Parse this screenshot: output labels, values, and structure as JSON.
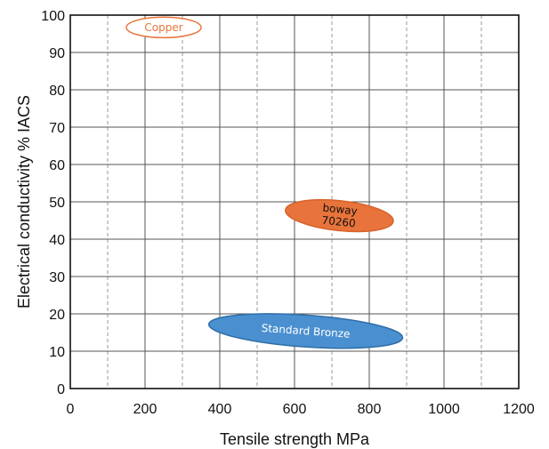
{
  "chart_data": {
    "type": "scatter",
    "title": "",
    "xlabel": "Tensile strength MPa",
    "ylabel": "Electrical conductivity % IACS",
    "xlim": [
      0,
      1200
    ],
    "ylim": [
      0,
      100
    ],
    "xticks": [
      "0",
      "200",
      "400",
      "600",
      "800",
      "1000",
      "1200"
    ],
    "yticks": [
      "0",
      "10",
      "20",
      "30",
      "40",
      "50",
      "60",
      "70",
      "80",
      "90",
      "100"
    ],
    "grid": {
      "major": true,
      "minor_dashed": true
    },
    "regions": [
      {
        "label_lines": [
          "Copper"
        ],
        "x_center": 250,
        "y_center": 96.7,
        "x_range": [
          150,
          350
        ],
        "y_range": [
          94,
          99.5
        ],
        "tilt_deg": 0,
        "fill": "#ffffff",
        "stroke": "#e8743b",
        "text_color": "#e8743b"
      },
      {
        "label_lines": [
          "boway",
          "70260"
        ],
        "x_center": 720,
        "y_center": 46.3,
        "x_range": [
          575,
          865
        ],
        "y_range": [
          42,
          50
        ],
        "tilt_deg": 6,
        "fill": "#e8743b",
        "stroke": "#d6622a",
        "text_color": "#111111"
      },
      {
        "label_lines": [
          "Standard Bronze"
        ],
        "x_center": 630,
        "y_center": 15.4,
        "x_range": [
          370,
          890
        ],
        "y_range": [
          11,
          19.5
        ],
        "tilt_deg": 4,
        "fill": "#4a8fcf",
        "stroke": "#2f6ea8",
        "text_color": "#ffffff"
      }
    ]
  }
}
